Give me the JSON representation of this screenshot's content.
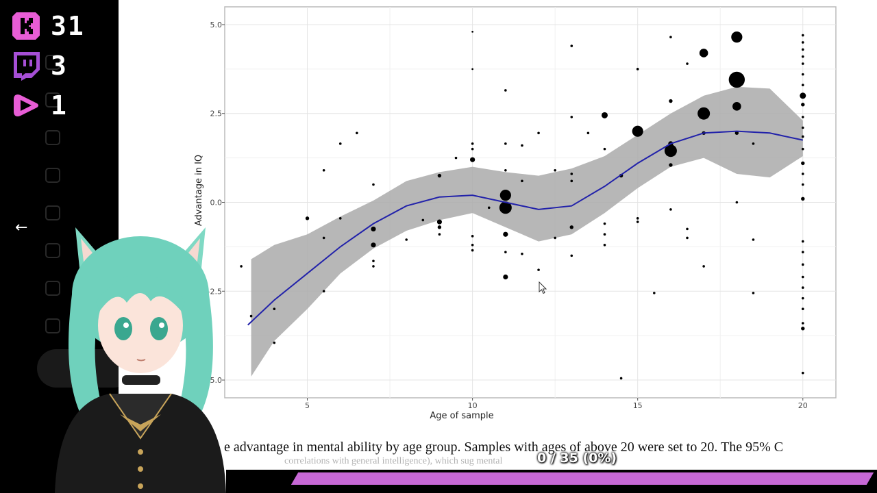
{
  "overlay": {
    "counters": [
      {
        "platform": "kick",
        "icon": "kick-logo-icon",
        "color": "#e85dd6",
        "value": "31"
      },
      {
        "platform": "twitch",
        "icon": "twitch-logo-icon",
        "color": "#a64fd6",
        "value": "3"
      },
      {
        "platform": "youtube",
        "icon": "play-logo-icon",
        "color": "#e85dd6",
        "value": "1"
      }
    ],
    "back_icon": "←",
    "progress": {
      "label": "0 / 35 (0%)",
      "current": 0,
      "total": 35,
      "fraction": 0.0,
      "track_color": "#c768d6"
    }
  },
  "caption": {
    "line1": "e advantage in mental ability by age group. Samples with ages of above 20 were set to 20. The 95% C",
    "line2": "correlations with general intelligence), which sug                                mental"
  },
  "chart_data": {
    "type": "scatter",
    "xlabel": "Age of sample",
    "ylabel": "Advantage in IQ",
    "xlim": [
      2.5,
      21
    ],
    "ylim": [
      -5.5,
      5.5
    ],
    "x_ticks": [
      5,
      10,
      15,
      20
    ],
    "x_tick_labels": [
      "5",
      "10",
      "15",
      "20"
    ],
    "y_ticks": [
      -5,
      -2.5,
      0,
      2.5,
      5
    ],
    "y_tick_labels": [
      "-5.0",
      "-2.5",
      "0.0",
      "2.5",
      "5.0"
    ],
    "grid": true,
    "colors": {
      "points": "#000000",
      "smooth": "#2222aa",
      "ribbon": "#aaaaaa",
      "panel_border": "#bbbbbb"
    },
    "smooth_line": {
      "x": [
        3.2,
        4,
        5,
        6,
        7,
        8,
        9,
        10,
        11,
        12,
        13,
        14,
        15,
        16,
        17,
        18,
        19,
        20
      ],
      "y": [
        -3.45,
        -2.75,
        -2.0,
        -1.25,
        -0.6,
        -0.1,
        0.15,
        0.2,
        0.0,
        -0.2,
        -0.1,
        0.45,
        1.1,
        1.65,
        1.95,
        2.0,
        1.95,
        1.75
      ]
    },
    "ribbon": {
      "x": [
        3.3,
        4,
        5,
        6,
        7,
        8,
        9,
        10,
        11,
        12,
        13,
        14,
        15,
        16,
        17,
        18,
        19,
        20
      ],
      "lower": [
        -4.9,
        -3.9,
        -3.0,
        -2.0,
        -1.3,
        -0.8,
        -0.5,
        -0.3,
        -0.7,
        -1.1,
        -0.9,
        -0.3,
        0.4,
        1.0,
        1.25,
        0.8,
        0.7,
        1.3
      ],
      "upper": [
        -1.6,
        -1.2,
        -0.9,
        -0.4,
        0.05,
        0.6,
        0.85,
        1.0,
        0.85,
        0.75,
        0.95,
        1.3,
        1.9,
        2.5,
        3.0,
        3.25,
        3.2,
        2.3
      ]
    },
    "points": [
      {
        "x": 3.0,
        "y": -1.8,
        "size": 2
      },
      {
        "x": 3.3,
        "y": -3.2,
        "size": 2
      },
      {
        "x": 4.0,
        "y": -3.0,
        "size": 2
      },
      {
        "x": 4.0,
        "y": -3.95,
        "size": 2
      },
      {
        "x": 5.0,
        "y": -0.45,
        "size": 3
      },
      {
        "x": 5.5,
        "y": 0.9,
        "size": 2
      },
      {
        "x": 5.5,
        "y": -1.0,
        "size": 2
      },
      {
        "x": 5.5,
        "y": -2.5,
        "size": 2
      },
      {
        "x": 6.0,
        "y": 1.65,
        "size": 2
      },
      {
        "x": 6.0,
        "y": -0.45,
        "size": 2
      },
      {
        "x": 6.5,
        "y": 1.95,
        "size": 2
      },
      {
        "x": 7.0,
        "y": 0.5,
        "size": 2
      },
      {
        "x": 7.0,
        "y": -0.75,
        "size": 4
      },
      {
        "x": 7.0,
        "y": -1.2,
        "size": 4
      },
      {
        "x": 7.0,
        "y": -1.65,
        "size": 2
      },
      {
        "x": 7.0,
        "y": -1.8,
        "size": 2
      },
      {
        "x": 8.0,
        "y": -1.05,
        "size": 2
      },
      {
        "x": 8.5,
        "y": -0.5,
        "size": 2
      },
      {
        "x": 9.0,
        "y": 0.75,
        "size": 3
      },
      {
        "x": 9.0,
        "y": -0.55,
        "size": 4
      },
      {
        "x": 9.0,
        "y": -0.7,
        "size": 3
      },
      {
        "x": 9.0,
        "y": -0.9,
        "size": 2
      },
      {
        "x": 9.5,
        "y": 1.25,
        "size": 2
      },
      {
        "x": 10.0,
        "y": 4.8,
        "size": 1.5
      },
      {
        "x": 10.0,
        "y": 3.75,
        "size": 1.5
      },
      {
        "x": 10.0,
        "y": 1.65,
        "size": 2
      },
      {
        "x": 10.0,
        "y": 1.5,
        "size": 2
      },
      {
        "x": 10.0,
        "y": 1.2,
        "size": 4
      },
      {
        "x": 10.0,
        "y": -0.95,
        "size": 2
      },
      {
        "x": 10.0,
        "y": -1.2,
        "size": 2
      },
      {
        "x": 10.0,
        "y": -1.35,
        "size": 2
      },
      {
        "x": 10.5,
        "y": -0.15,
        "size": 2
      },
      {
        "x": 11.0,
        "y": 3.15,
        "size": 2
      },
      {
        "x": 11.0,
        "y": 1.65,
        "size": 2
      },
      {
        "x": 11.0,
        "y": 0.9,
        "size": 2
      },
      {
        "x": 11.0,
        "y": 0.2,
        "size": 9
      },
      {
        "x": 11.0,
        "y": -0.15,
        "size": 10
      },
      {
        "x": 11.0,
        "y": -0.9,
        "size": 4
      },
      {
        "x": 11.0,
        "y": -1.4,
        "size": 2
      },
      {
        "x": 11.0,
        "y": -2.1,
        "size": 4
      },
      {
        "x": 11.5,
        "y": 1.6,
        "size": 2
      },
      {
        "x": 11.5,
        "y": 0.6,
        "size": 2
      },
      {
        "x": 11.5,
        "y": -1.45,
        "size": 2
      },
      {
        "x": 12.0,
        "y": 1.95,
        "size": 2
      },
      {
        "x": 12.0,
        "y": -1.9,
        "size": 2
      },
      {
        "x": 12.5,
        "y": 0.9,
        "size": 2
      },
      {
        "x": 12.5,
        "y": -1.0,
        "size": 2
      },
      {
        "x": 13.0,
        "y": 4.4,
        "size": 2
      },
      {
        "x": 13.0,
        "y": 2.4,
        "size": 2
      },
      {
        "x": 13.0,
        "y": 0.8,
        "size": 2
      },
      {
        "x": 13.0,
        "y": 0.6,
        "size": 2
      },
      {
        "x": 13.0,
        "y": -0.7,
        "size": 3
      },
      {
        "x": 13.0,
        "y": -1.5,
        "size": 2
      },
      {
        "x": 13.5,
        "y": 1.95,
        "size": 2
      },
      {
        "x": 14.0,
        "y": 2.45,
        "size": 5
      },
      {
        "x": 14.0,
        "y": 1.5,
        "size": 2
      },
      {
        "x": 14.0,
        "y": -0.6,
        "size": 2
      },
      {
        "x": 14.0,
        "y": -0.9,
        "size": 2
      },
      {
        "x": 14.0,
        "y": -1.2,
        "size": 2
      },
      {
        "x": 14.5,
        "y": 0.75,
        "size": 3
      },
      {
        "x": 14.5,
        "y": -4.95,
        "size": 2
      },
      {
        "x": 15.0,
        "y": 3.75,
        "size": 2
      },
      {
        "x": 15.0,
        "y": 2.0,
        "size": 9
      },
      {
        "x": 15.0,
        "y": -0.45,
        "size": 2
      },
      {
        "x": 15.0,
        "y": -0.55,
        "size": 2
      },
      {
        "x": 15.5,
        "y": -2.55,
        "size": 2
      },
      {
        "x": 16.0,
        "y": 4.65,
        "size": 2
      },
      {
        "x": 16.0,
        "y": 2.85,
        "size": 3
      },
      {
        "x": 16.0,
        "y": 1.65,
        "size": 4
      },
      {
        "x": 16.0,
        "y": 1.45,
        "size": 10
      },
      {
        "x": 16.0,
        "y": 1.05,
        "size": 3
      },
      {
        "x": 16.0,
        "y": -0.2,
        "size": 2
      },
      {
        "x": 16.5,
        "y": 3.9,
        "size": 2
      },
      {
        "x": 16.5,
        "y": -0.75,
        "size": 2
      },
      {
        "x": 16.5,
        "y": -1.0,
        "size": 2
      },
      {
        "x": 17.0,
        "y": 4.2,
        "size": 7
      },
      {
        "x": 17.0,
        "y": 2.5,
        "size": 10
      },
      {
        "x": 17.0,
        "y": 1.95,
        "size": 3
      },
      {
        "x": 17.0,
        "y": -1.8,
        "size": 2
      },
      {
        "x": 18.0,
        "y": 4.65,
        "size": 9
      },
      {
        "x": 18.0,
        "y": 3.45,
        "size": 13
      },
      {
        "x": 18.0,
        "y": 2.7,
        "size": 7
      },
      {
        "x": 18.0,
        "y": 1.95,
        "size": 3
      },
      {
        "x": 18.0,
        "y": 0.0,
        "size": 2
      },
      {
        "x": 18.5,
        "y": 1.65,
        "size": 2
      },
      {
        "x": 18.5,
        "y": -1.05,
        "size": 2
      },
      {
        "x": 18.5,
        "y": -2.55,
        "size": 2
      },
      {
        "x": 20.0,
        "y": 4.7,
        "size": 2
      },
      {
        "x": 20.0,
        "y": 4.5,
        "size": 2
      },
      {
        "x": 20.0,
        "y": 4.3,
        "size": 2
      },
      {
        "x": 20.0,
        "y": 4.1,
        "size": 2
      },
      {
        "x": 20.0,
        "y": 3.9,
        "size": 2
      },
      {
        "x": 20.0,
        "y": 3.6,
        "size": 2
      },
      {
        "x": 20.0,
        "y": 3.3,
        "size": 2
      },
      {
        "x": 20.0,
        "y": 3.0,
        "size": 5
      },
      {
        "x": 20.0,
        "y": 2.75,
        "size": 3
      },
      {
        "x": 20.0,
        "y": 2.4,
        "size": 2
      },
      {
        "x": 20.0,
        "y": 2.1,
        "size": 2
      },
      {
        "x": 20.0,
        "y": 1.85,
        "size": 2
      },
      {
        "x": 20.0,
        "y": 1.5,
        "size": 2
      },
      {
        "x": 20.0,
        "y": 1.1,
        "size": 3
      },
      {
        "x": 20.0,
        "y": 0.8,
        "size": 2
      },
      {
        "x": 20.0,
        "y": 0.5,
        "size": 2
      },
      {
        "x": 20.0,
        "y": 0.1,
        "size": 3
      },
      {
        "x": 20.0,
        "y": -1.1,
        "size": 2
      },
      {
        "x": 20.0,
        "y": -1.4,
        "size": 2
      },
      {
        "x": 20.0,
        "y": -1.75,
        "size": 2
      },
      {
        "x": 20.0,
        "y": -2.1,
        "size": 2
      },
      {
        "x": 20.0,
        "y": -2.4,
        "size": 2
      },
      {
        "x": 20.0,
        "y": -2.7,
        "size": 2
      },
      {
        "x": 20.0,
        "y": -3.0,
        "size": 2
      },
      {
        "x": 20.0,
        "y": -3.4,
        "size": 2
      },
      {
        "x": 20.0,
        "y": -3.55,
        "size": 3
      },
      {
        "x": 20.0,
        "y": -4.8,
        "size": 2
      }
    ]
  }
}
